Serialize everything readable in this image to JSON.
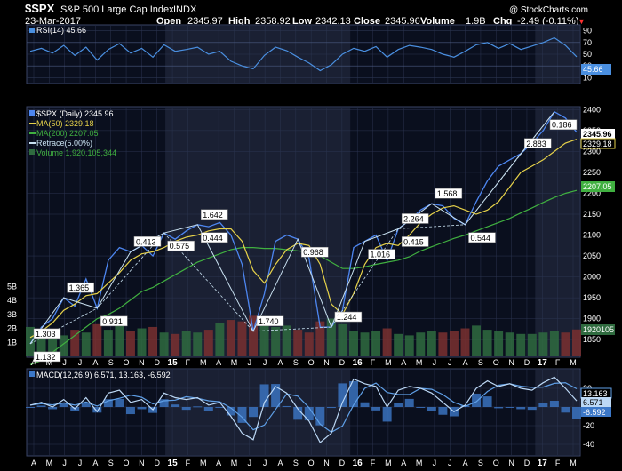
{
  "header": {
    "symbol": "$SPX",
    "name": "S&P 500 Large Cap Index",
    "exchange": "INDX",
    "watermark": "@ StockCharts.com",
    "date": "23-Mar-2017",
    "open_label": "Open",
    "open": "2345.97",
    "high_label": "High",
    "high": "2358.92",
    "low_label": "Low",
    "low": "2342.13",
    "close_label": "Close",
    "close": "2345.96",
    "volume_label": "Volume",
    "volume": "1.9B",
    "chg_label": "Chg",
    "chg": "-2.49 (-0.11%)",
    "chg_arrow": "▼"
  },
  "colors": {
    "background": "#000000",
    "panel_bg": "#0a0f1e",
    "panel_bg_shaded": "#1a2033",
    "grid": "#2b3450",
    "price_line": "#4d86f0",
    "ma50": "#e6d24a",
    "ma200": "#40b040",
    "retrace": "#c8e0f0",
    "rsi": "#4a8fe0",
    "macd_line": "#bcd8f5",
    "macd_signal": "#5f9fe6",
    "macd_hist": "#3c78c8",
    "vol_up": "#2f6b3f",
    "vol_down": "#7a3030",
    "down_arrow": "#ff3030"
  },
  "rsi_panel": {
    "legend": "RSI(14) 45.66",
    "current": "45.66",
    "ticks": [
      "90",
      "70",
      "50",
      "30",
      "10"
    ]
  },
  "price_panel": {
    "legend": {
      "main": "$SPX (Daily) 2345.96",
      "ma50": "MA(50) 2329.18",
      "ma200": "MA(200) 2207.05",
      "retrace": "Retrace(5.00%)",
      "volume": "Volume 1,920,105,344"
    },
    "y_ticks": [
      "2400",
      "2350",
      "2300",
      "2250",
      "2200",
      "2150",
      "2100",
      "2050",
      "2000",
      "1950",
      "1900",
      "1850"
    ],
    "vol_ticks": [
      "5B",
      "4B",
      "3B",
      "2B",
      "1B"
    ],
    "current_price": "2345.96",
    "current_ma50": "2329.18",
    "current_ma200": "2207.05",
    "current_volume": "1920105",
    "retrace_labels": [
      "1.303",
      "1.132",
      "1.365",
      "0.931",
      "0.413",
      "0.575",
      "1.642",
      "0.444",
      "1.740",
      "0.968",
      "1.244",
      "1.016",
      "2.264",
      "0.415",
      "1.568",
      "0.544",
      "2.883",
      "0.186"
    ]
  },
  "macd_panel": {
    "legend": "MACD(12,26,9) 6.571, 13.163, -6.592",
    "y_ticks": [
      "20",
      "0",
      "-20",
      "-40"
    ],
    "current_signal": "13.163",
    "current_macd": "6.571",
    "current_hist": "-6.592"
  },
  "x_axis": {
    "labels": [
      "A",
      "M",
      "J",
      "J",
      "A",
      "S",
      "O",
      "N",
      "D",
      "15",
      "F",
      "M",
      "A",
      "M",
      "J",
      "J",
      "A",
      "S",
      "O",
      "N",
      "D",
      "16",
      "F",
      "M",
      "A",
      "M",
      "J",
      "J",
      "A",
      "S",
      "O",
      "N",
      "D",
      "17",
      "F",
      "M"
    ]
  },
  "chart_data": {
    "type": "line",
    "title": "$SPX S&P 500 Large Cap Index INDX",
    "x_range": [
      "2014-04",
      "2017-03"
    ],
    "ylim": [
      1810,
      2405
    ],
    "series": [
      {
        "name": "$SPX (Daily)",
        "values": [
          1840,
          1880,
          1900,
          1950,
          1930,
          1995,
          1925,
          2040,
          2070,
          2060,
          2075,
          2050,
          2105,
          2090,
          2110,
          2125,
          2120,
          2130,
          2100,
          2030,
          1870,
          1960,
          2085,
          2100,
          2090,
          2045,
          1880,
          1880,
          1920,
          2070,
          2085,
          2100,
          2040,
          2115,
          2135,
          2160,
          2175,
          2170,
          2140,
          2125,
          2180,
          2230,
          2265,
          2280,
          2295,
          2320,
          2350,
          2395,
          2380,
          2345.96
        ]
      },
      {
        "name": "MA(50)",
        "values": [
          1855,
          1870,
          1890,
          1920,
          1935,
          1955,
          1960,
          1985,
          2010,
          2040,
          2055,
          2060,
          2070,
          2085,
          2095,
          2100,
          2110,
          2115,
          2115,
          2085,
          2015,
          1985,
          2030,
          2065,
          2080,
          2075,
          2030,
          1935,
          1910,
          1960,
          2030,
          2070,
          2080,
          2075,
          2100,
          2130,
          2150,
          2165,
          2170,
          2160,
          2150,
          2160,
          2180,
          2215,
          2250,
          2265,
          2280,
          2300,
          2320,
          2329.18
        ]
      },
      {
        "name": "MA(200)",
        "values": [
          1790,
          1800,
          1820,
          1840,
          1860,
          1880,
          1900,
          1910,
          1925,
          1945,
          1965,
          1975,
          1990,
          2005,
          2020,
          2035,
          2045,
          2055,
          2065,
          2070,
          2070,
          2068,
          2068,
          2065,
          2062,
          2060,
          2050,
          2035,
          2020,
          2020,
          2024,
          2030,
          2035,
          2040,
          2048,
          2062,
          2072,
          2082,
          2092,
          2100,
          2110,
          2120,
          2130,
          2140,
          2153,
          2165,
          2178,
          2190,
          2200,
          2207.05
        ]
      },
      {
        "name": "RSI(14)",
        "values": [
          55,
          60,
          52,
          65,
          48,
          62,
          40,
          58,
          68,
          52,
          60,
          45,
          66,
          55,
          58,
          62,
          50,
          55,
          38,
          30,
          25,
          48,
          62,
          56,
          45,
          35,
          22,
          32,
          50,
          60,
          55,
          63,
          45,
          58,
          65,
          62,
          58,
          50,
          45,
          55,
          66,
          70,
          60,
          68,
          58,
          64,
          70,
          78,
          65,
          45.66
        ]
      },
      {
        "name": "MACD",
        "values": [
          2,
          5,
          0,
          8,
          -2,
          10,
          -5,
          15,
          18,
          5,
          8,
          -3,
          15,
          10,
          8,
          10,
          2,
          5,
          -10,
          -28,
          -35,
          5,
          22,
          15,
          -2,
          -15,
          -38,
          -28,
          5,
          30,
          25,
          22,
          0,
          18,
          22,
          20,
          15,
          5,
          -5,
          2,
          20,
          28,
          22,
          25,
          20,
          18,
          26,
          32,
          20,
          6.571
        ]
      }
    ],
    "volume_billions": [
      2.1,
      1.8,
      1.6,
      1.5,
      1.9,
      1.7,
      2.3,
      1.9,
      2.2,
      1.8,
      2.0,
      2.1,
      1.7,
      1.6,
      1.8,
      1.7,
      1.9,
      2.4,
      2.6,
      2.5,
      2.9,
      2.3,
      2.1,
      2.2,
      1.9,
      1.7,
      2.5,
      2.7,
      2.3,
      1.8,
      1.7,
      1.8,
      2.0,
      1.6,
      1.5,
      1.7,
      1.8,
      1.7,
      1.8,
      2.0,
      2.2,
      1.9,
      1.8,
      1.7,
      1.6,
      1.6,
      1.7,
      1.8,
      1.7,
      1.92
    ]
  }
}
